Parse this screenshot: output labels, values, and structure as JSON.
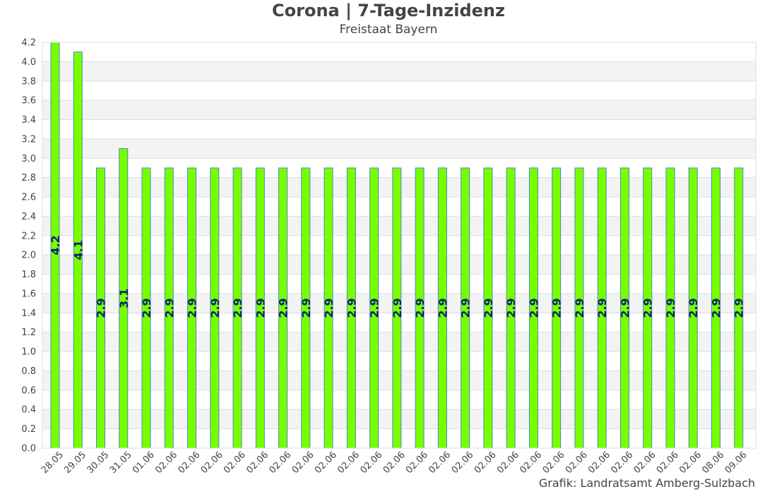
{
  "chart_data": {
    "type": "bar",
    "title": "Corona | 7-Tage-Inzidenz",
    "subtitle": "Freistaat Bayern",
    "credit": "Grafik: Landratsamt Amberg-Sulzbach",
    "categories": [
      "28.05",
      "29.05",
      "30.05",
      "31.05",
      "01.06",
      "02.06",
      "02.06",
      "02.06",
      "02.06",
      "02.06",
      "02.06",
      "02.06",
      "02.06",
      "02.06",
      "02.06",
      "02.06",
      "02.06",
      "02.06",
      "02.06",
      "02.06",
      "02.06",
      "02.06",
      "02.06",
      "02.06",
      "02.06",
      "02.06",
      "02.06",
      "02.06",
      "02.06",
      "08.06",
      "09.06"
    ],
    "values": [
      4.2,
      4.1,
      2.9,
      3.1,
      2.9,
      2.9,
      2.9,
      2.9,
      2.9,
      2.9,
      2.9,
      2.9,
      2.9,
      2.9,
      2.9,
      2.9,
      2.9,
      2.9,
      2.9,
      2.9,
      2.9,
      2.9,
      2.9,
      2.9,
      2.9,
      2.9,
      2.9,
      2.9,
      2.9,
      2.9,
      2.9
    ],
    "ylim": [
      0,
      4.2
    ],
    "ytick_step": 0.2,
    "xlabel": "",
    "ylabel": "",
    "grid": true,
    "legend": "none",
    "colors": {
      "bar_fill": "#77ff00",
      "bar_stroke": "#4488cc",
      "data_label": "#112266",
      "band": "#f3f3f3",
      "grid": "#dddddd",
      "text": "#444444"
    }
  }
}
